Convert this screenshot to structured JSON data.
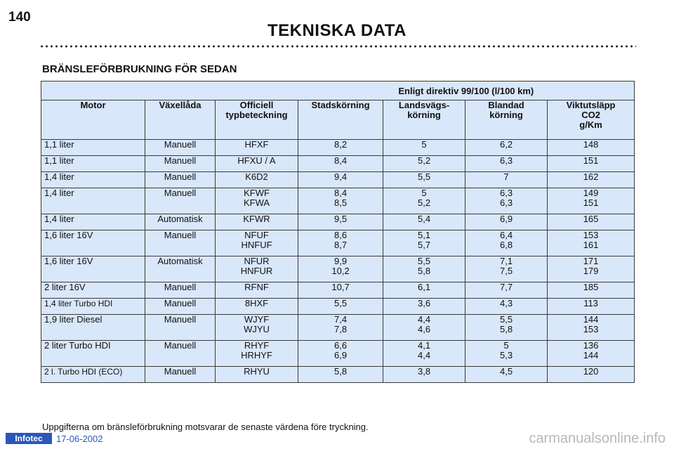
{
  "page_number": "140",
  "title": "TEKNISKA DATA",
  "section_title": "BRÄNSLEFÖRBRUKNING FÖR SEDAN",
  "group_header": "Enligt direktiv 99/100 (l/100 km)",
  "columns": {
    "motor": "Motor",
    "vaxellada": "Växellåda",
    "officiell": [
      "Officiell",
      "typbeteckning"
    ],
    "stad": "Stadskörning",
    "lands": [
      "Landsvägs-",
      "körning"
    ],
    "blandad": [
      "Blandad",
      "körning"
    ],
    "co2": [
      "Viktutsläpp",
      "CO2",
      "g/Km"
    ]
  },
  "rows": [
    {
      "motor": "1,1 liter",
      "vaxel": "Manuell",
      "typ": [
        "HFXF"
      ],
      "stad": [
        "8,2"
      ],
      "lands": [
        "5"
      ],
      "bland": [
        "6,2"
      ],
      "co2": [
        "148"
      ]
    },
    {
      "motor": "1,1 liter",
      "vaxel": "Manuell",
      "typ": [
        "HFXU / A"
      ],
      "stad": [
        "8,4"
      ],
      "lands": [
        "5,2"
      ],
      "bland": [
        "6,3"
      ],
      "co2": [
        "151"
      ]
    },
    {
      "motor": "1,4 liter",
      "vaxel": "Manuell",
      "typ": [
        "K6D2"
      ],
      "stad": [
        "9,4"
      ],
      "lands": [
        "5,5"
      ],
      "bland": [
        "7"
      ],
      "co2": [
        "162"
      ]
    },
    {
      "motor": "1,4 liter",
      "vaxel": "Manuell",
      "typ": [
        "KFWF",
        "KFWA"
      ],
      "stad": [
        "8,4",
        "8,5"
      ],
      "lands": [
        "5",
        "5,2"
      ],
      "bland": [
        "6,3",
        "6,3"
      ],
      "co2": [
        "149",
        "151"
      ]
    },
    {
      "motor": "1,4 liter",
      "vaxel": "Automatisk",
      "typ": [
        "KFWR"
      ],
      "stad": [
        "9,5"
      ],
      "lands": [
        "5,4"
      ],
      "bland": [
        "6,9"
      ],
      "co2": [
        "165"
      ]
    },
    {
      "motor": "1,6 liter 16V",
      "vaxel": "Manuell",
      "typ": [
        "NFUF",
        "HNFUF"
      ],
      "stad": [
        "8,6",
        "8,7"
      ],
      "lands": [
        "5,1",
        "5,7"
      ],
      "bland": [
        "6,4",
        "6,8"
      ],
      "co2": [
        "153",
        "161"
      ]
    },
    {
      "motor": "1,6 liter 16V",
      "vaxel": "Automatisk",
      "typ": [
        "NFUR",
        "HNFUR"
      ],
      "stad": [
        "9,9",
        "10,2"
      ],
      "lands": [
        "5,5",
        "5,8"
      ],
      "bland": [
        "7,1",
        "7,5"
      ],
      "co2": [
        "171",
        "179"
      ]
    },
    {
      "motor": "2 liter 16V",
      "vaxel": "Manuell",
      "typ": [
        "RFNF"
      ],
      "stad": [
        "10,7"
      ],
      "lands": [
        "6,1"
      ],
      "bland": [
        "7,7"
      ],
      "co2": [
        "185"
      ]
    },
    {
      "motor": "1,4 liter Turbo HDI",
      "vaxel": "Manuell",
      "typ": [
        "8HXF"
      ],
      "stad": [
        "5,5"
      ],
      "lands": [
        "3,6"
      ],
      "bland": [
        "4,3"
      ],
      "co2": [
        "113"
      ]
    },
    {
      "motor": "1,9 liter Diesel",
      "vaxel": "Manuell",
      "typ": [
        "WJYF",
        "WJYU"
      ],
      "stad": [
        "7,4",
        "7,8"
      ],
      "lands": [
        "4,4",
        "4,6"
      ],
      "bland": [
        "5,5",
        "5,8"
      ],
      "co2": [
        "144",
        "153"
      ]
    },
    {
      "motor": "2 liter Turbo HDI",
      "vaxel": "Manuell",
      "typ": [
        "RHYF",
        "HRHYF"
      ],
      "stad": [
        "6,6",
        "6,9"
      ],
      "lands": [
        "4,1",
        "4,4"
      ],
      "bland": [
        "5",
        "5,3"
      ],
      "co2": [
        "136",
        "144"
      ]
    },
    {
      "motor": "2 l. Turbo HDI (ECO)",
      "vaxel": "Manuell",
      "typ": [
        "RHYU"
      ],
      "stad": [
        "5,8"
      ],
      "lands": [
        "3,8"
      ],
      "bland": [
        "4,5"
      ],
      "co2": [
        "120"
      ]
    }
  ],
  "footnote": "Uppgifterna om bränsleförbrukning motsvarar de senaste värdena före tryckning.",
  "logo_text": "Infotec",
  "date": "17-06-2002",
  "watermark": "carmanualsonline.info"
}
